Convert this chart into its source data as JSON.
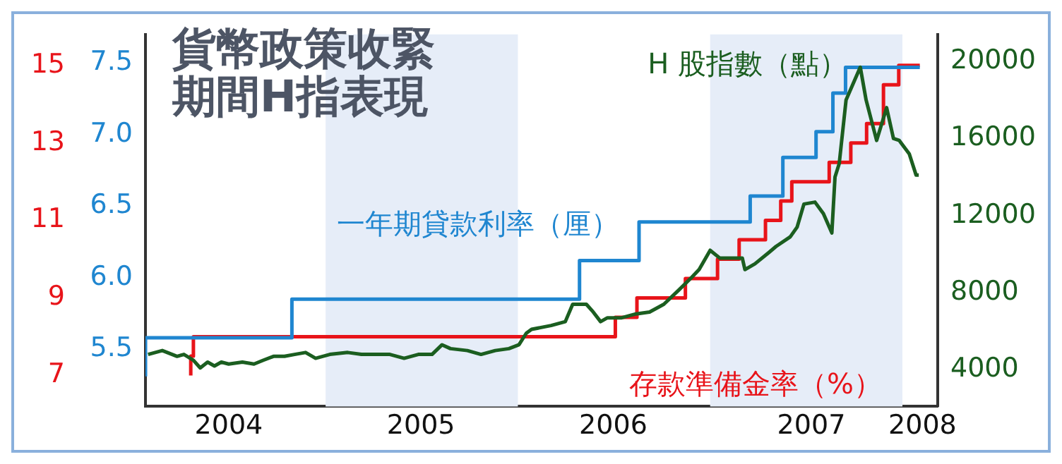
{
  "chart_data": {
    "type": "line",
    "title": "貨幣政策收緊期間H指表現",
    "xlim": [
      "2004-01-25",
      "2008-03-08"
    ],
    "xticks": [
      {
        "value": "2004-07-01",
        "label": "2004"
      },
      {
        "value": "2005-07-01",
        "label": "2005"
      },
      {
        "value": "2006-07-01",
        "label": "2006"
      },
      {
        "value": "2007-07-12",
        "label": "2007"
      },
      {
        "value": "2008-02-08",
        "label": "2008"
      }
    ],
    "ylim": [
      5.1,
      7.7
    ],
    "yticks": [
      5.5,
      {
        "value": 6,
        "label": "6.0"
      },
      6.5,
      {
        "value": 7,
        "label": "7.0"
      },
      7.5
    ],
    "y2lim": [
      6.2,
      15.8
    ],
    "y2ticks": [
      7,
      9,
      11,
      13,
      15
    ],
    "y3lim": [
      2100,
      21400
    ],
    "y3ticks": [
      4000,
      8000,
      12000,
      16000,
      20000
    ],
    "grid": false,
    "legend": false,
    "bands": [
      {
        "axis": "x",
        "from": "2005-01-01",
        "to": "2006-01-01",
        "color": "#e6edf8"
      },
      {
        "axis": "x",
        "from": "2007-01-01",
        "to": "2008-01-01",
        "color": "#e6edf8"
      }
    ],
    "series": [
      {
        "name": "H 股指數（點）",
        "type": "line",
        "axis": "y3",
        "color": "#1b5e20",
        "x": [
          "2004-01-30",
          "2004-02-26",
          "2004-03-25",
          "2004-04-07",
          "2004-04-25",
          "2004-05-08",
          "2004-05-22",
          "2004-06-04",
          "2004-06-17",
          "2004-07-01",
          "2004-07-27",
          "2004-08-18",
          "2004-09-05",
          "2004-09-24",
          "2004-10-15",
          "2004-11-03",
          "2004-11-24",
          "2004-12-13",
          "2005-01-09",
          "2005-02-12",
          "2005-03-10",
          "2005-04-06",
          "2005-05-03",
          "2005-05-30",
          "2005-06-26",
          "2005-07-22",
          "2005-08-10",
          "2005-08-26",
          "2005-09-27",
          "2005-10-23",
          "2005-11-19",
          "2005-12-15",
          "2006-01-03",
          "2006-01-17",
          "2006-01-27",
          "2006-03-05",
          "2006-04-01",
          "2006-04-15",
          "2006-05-11",
          "2006-05-24",
          "2006-06-07",
          "2006-06-20",
          "2006-07-17",
          "2006-08-13",
          "2006-09-08",
          "2006-10-05",
          "2006-11-01",
          "2006-11-27",
          "2006-12-11",
          "2007-01-01",
          "2007-01-19",
          "2007-02-09",
          "2007-03-03",
          "2007-03-08",
          "2007-03-27",
          "2007-04-23",
          "2007-05-06",
          "2007-06-02",
          "2007-06-15",
          "2007-06-28",
          "2007-07-19",
          "2007-08-04",
          "2007-08-20",
          "2007-08-26",
          "2007-09-03",
          "2007-09-16",
          "2007-10-13",
          "2007-10-24",
          "2007-11-13",
          "2007-12-02",
          "2007-12-15",
          "2007-12-26",
          "2008-01-14",
          "2008-01-27",
          "2008-02-01"
        ],
        "values": [
          4800,
          5000,
          4700,
          4800,
          4500,
          4100,
          4400,
          4200,
          4400,
          4300,
          4400,
          4300,
          4500,
          4700,
          4700,
          4800,
          4900,
          4600,
          4800,
          4900,
          4800,
          4800,
          4800,
          4600,
          4800,
          4800,
          5300,
          5100,
          5000,
          4800,
          5000,
          5100,
          5300,
          5900,
          6100,
          6300,
          6500,
          7400,
          7400,
          7000,
          6500,
          6700,
          6700,
          6900,
          7000,
          7400,
          8100,
          8800,
          9200,
          10200,
          9800,
          9800,
          9800,
          9200,
          9500,
          10100,
          10400,
          10900,
          11400,
          12600,
          12700,
          12100,
          11100,
          14000,
          14700,
          18000,
          19700,
          18000,
          15900,
          17600,
          16000,
          15900,
          15200,
          14100,
          14100
        ]
      },
      {
        "name": "一年期貸款利率（厘）",
        "type": "step",
        "axis": "y",
        "color": "#1f86d0",
        "x": [
          "2004-01-25",
          "2004-10-29",
          "2006-04-28",
          "2006-08-19",
          "2007-03-18",
          "2007-05-19",
          "2007-07-21",
          "2007-08-22",
          "2007-09-15",
          "2007-12-21",
          "2008-02-03"
        ],
        "values": [
          5.31,
          5.58,
          5.85,
          6.12,
          6.39,
          6.57,
          6.84,
          7.02,
          7.29,
          7.47,
          7.47
        ]
      },
      {
        "name": "存款準備金率（%）",
        "type": "step",
        "axis": "y2",
        "color": "#e8141a",
        "x": [
          "2004-04-20",
          "2004-04-25",
          "2006-07-05",
          "2006-08-15",
          "2006-11-15",
          "2007-01-15",
          "2007-02-25",
          "2007-04-16",
          "2007-05-15",
          "2007-06-05",
          "2007-08-15",
          "2007-09-25",
          "2007-10-25",
          "2007-11-26",
          "2007-12-25",
          "2008-01-25",
          "2008-02-03"
        ],
        "values": [
          7,
          7.5,
          8,
          8.5,
          9,
          9.5,
          10,
          10.5,
          11,
          11.5,
          12,
          12.5,
          13,
          13.5,
          14.5,
          15,
          15
        ]
      }
    ]
  }
}
